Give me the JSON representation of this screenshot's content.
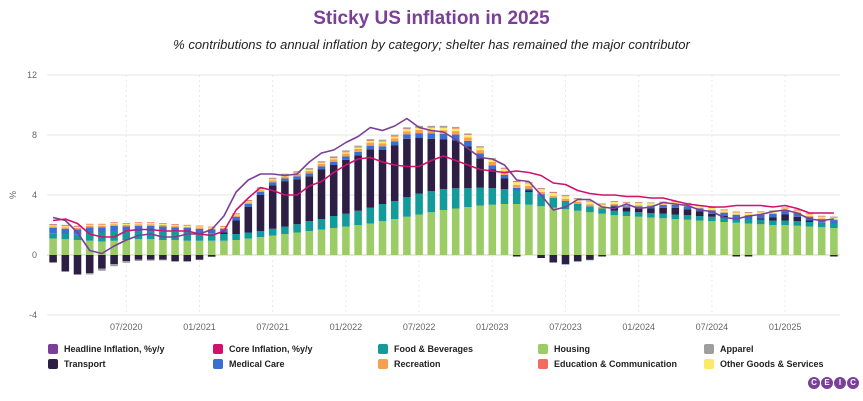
{
  "chart_data": {
    "type": "bar",
    "title": "Sticky US inflation in 2025",
    "subtitle": "% contributions to annual inflation by category; shelter has remained the major contributor",
    "ylabel": "%",
    "ylim": [
      -4,
      12
    ],
    "yticks": [
      "12",
      "8",
      "4",
      "0",
      "-4"
    ],
    "xticklabels": [
      "07/2020",
      "01/2021",
      "07/2021",
      "01/2022",
      "07/2022",
      "01/2023",
      "07/2023",
      "01/2024",
      "07/2024",
      "01/2025"
    ],
    "months": [
      "01/2020",
      "02/2020",
      "03/2020",
      "04/2020",
      "05/2020",
      "06/2020",
      "07/2020",
      "08/2020",
      "09/2020",
      "10/2020",
      "11/2020",
      "12/2020",
      "01/2021",
      "02/2021",
      "03/2021",
      "04/2021",
      "05/2021",
      "06/2021",
      "07/2021",
      "08/2021",
      "09/2021",
      "10/2021",
      "11/2021",
      "12/2021",
      "01/2022",
      "02/2022",
      "03/2022",
      "04/2022",
      "05/2022",
      "06/2022",
      "07/2022",
      "08/2022",
      "09/2022",
      "10/2022",
      "11/2022",
      "12/2022",
      "01/2023",
      "02/2023",
      "03/2023",
      "04/2023",
      "05/2023",
      "06/2023",
      "07/2023",
      "08/2023",
      "09/2023",
      "10/2023",
      "11/2023",
      "12/2023",
      "01/2024",
      "02/2024",
      "03/2024",
      "04/2024",
      "05/2024",
      "06/2024",
      "07/2024",
      "08/2024",
      "09/2024",
      "10/2024",
      "11/2024",
      "12/2024",
      "01/2025",
      "02/2025",
      "03/2025",
      "04/2025",
      "05/2025"
    ],
    "series": [
      {
        "name": "Housing",
        "color": "#9ccc65",
        "values": [
          1.1,
          1.05,
          1.0,
          0.95,
          0.9,
          0.95,
          1.0,
          1.05,
          1.05,
          1.0,
          1.0,
          0.95,
          0.95,
          0.95,
          0.95,
          1.0,
          1.1,
          1.2,
          1.3,
          1.4,
          1.5,
          1.6,
          1.7,
          1.8,
          1.9,
          2.0,
          2.1,
          2.25,
          2.4,
          2.55,
          2.7,
          2.85,
          3.0,
          3.1,
          3.2,
          3.3,
          3.35,
          3.4,
          3.4,
          3.35,
          3.25,
          3.15,
          3.05,
          2.95,
          2.85,
          2.75,
          2.65,
          2.6,
          2.55,
          2.5,
          2.45,
          2.4,
          2.35,
          2.3,
          2.25,
          2.2,
          2.15,
          2.1,
          2.05,
          2.0,
          2.0,
          1.95,
          1.9,
          1.85,
          1.8
        ]
      },
      {
        "name": "Food & Beverages",
        "color": "#139b9b",
        "values": [
          0.35,
          0.35,
          0.35,
          0.55,
          0.6,
          0.65,
          0.55,
          0.55,
          0.55,
          0.55,
          0.55,
          0.55,
          0.5,
          0.5,
          0.45,
          0.4,
          0.4,
          0.4,
          0.45,
          0.5,
          0.55,
          0.65,
          0.7,
          0.8,
          0.85,
          0.95,
          1.05,
          1.15,
          1.2,
          1.3,
          1.4,
          1.4,
          1.4,
          1.35,
          1.25,
          1.2,
          1.1,
          1.0,
          0.9,
          0.85,
          0.75,
          0.65,
          0.55,
          0.45,
          0.4,
          0.35,
          0.3,
          0.3,
          0.3,
          0.3,
          0.3,
          0.3,
          0.3,
          0.3,
          0.3,
          0.3,
          0.3,
          0.3,
          0.3,
          0.3,
          0.3,
          0.3,
          0.3,
          0.3,
          0.3
        ]
      },
      {
        "name": "Transport",
        "color": "#2d1f44",
        "values": [
          -0.5,
          -1.1,
          -1.3,
          -1.2,
          -0.9,
          -0.6,
          -0.4,
          -0.3,
          -0.3,
          -0.3,
          -0.4,
          -0.4,
          -0.3,
          -0.1,
          0.1,
          0.9,
          1.7,
          2.4,
          2.9,
          3.0,
          3.0,
          3.0,
          3.3,
          3.4,
          3.6,
          3.7,
          3.9,
          3.6,
          3.7,
          3.9,
          3.7,
          3.5,
          3.3,
          3.2,
          2.8,
          1.95,
          1.25,
          0.7,
          -0.1,
          0.1,
          -0.2,
          -0.5,
          -0.6,
          -0.4,
          -0.3,
          -0.1,
          0.3,
          0.25,
          0.25,
          0.3,
          0.4,
          0.45,
          0.4,
          0.3,
          0.2,
          0.1,
          -0.1,
          -0.1,
          0.1,
          0.2,
          0.4,
          0.3,
          0.1,
          0.0,
          -0.1
        ]
      },
      {
        "name": "Medical Care",
        "color": "#3a6fd1",
        "values": [
          0.35,
          0.35,
          0.35,
          0.35,
          0.35,
          0.35,
          0.35,
          0.35,
          0.35,
          0.35,
          0.3,
          0.3,
          0.3,
          0.25,
          0.25,
          0.25,
          0.2,
          0.2,
          0.2,
          0.2,
          0.2,
          0.2,
          0.2,
          0.2,
          0.22,
          0.22,
          0.24,
          0.25,
          0.27,
          0.3,
          0.32,
          0.35,
          0.38,
          0.38,
          0.36,
          0.32,
          0.28,
          0.24,
          0.18,
          0.12,
          0.06,
          0.0,
          -0.02,
          -0.04,
          -0.05,
          0.0,
          0.05,
          0.1,
          0.14,
          0.16,
          0.18,
          0.2,
          0.2,
          0.21,
          0.22,
          0.22,
          0.23,
          0.24,
          0.24,
          0.25,
          0.25,
          0.25,
          0.25,
          0.24,
          0.23
        ]
      },
      {
        "name": "Recreation",
        "color": "#f6a04d",
        "values": [
          0.1,
          0.1,
          0.1,
          0.1,
          0.1,
          0.1,
          0.1,
          0.1,
          0.1,
          0.1,
          0.08,
          0.08,
          0.08,
          0.06,
          0.06,
          0.08,
          0.1,
          0.12,
          0.12,
          0.14,
          0.15,
          0.16,
          0.17,
          0.18,
          0.19,
          0.2,
          0.2,
          0.2,
          0.2,
          0.2,
          0.22,
          0.23,
          0.24,
          0.23,
          0.22,
          0.22,
          0.22,
          0.22,
          0.2,
          0.18,
          0.15,
          0.15,
          0.15,
          0.15,
          0.14,
          0.12,
          0.1,
          0.09,
          0.08,
          0.06,
          0.05,
          0.05,
          0.05,
          0.04,
          0.04,
          0.04,
          0.04,
          0.04,
          0.04,
          0.04,
          0.04,
          0.05,
          0.05,
          0.05,
          0.05
        ]
      },
      {
        "name": "Other Goods & Services",
        "color": "#fbe96a",
        "values": [
          0.08,
          0.08,
          0.08,
          0.08,
          0.08,
          0.08,
          0.08,
          0.08,
          0.08,
          0.08,
          0.08,
          0.08,
          0.08,
          0.08,
          0.08,
          0.08,
          0.08,
          0.08,
          0.08,
          0.08,
          0.08,
          0.08,
          0.08,
          0.08,
          0.09,
          0.1,
          0.11,
          0.12,
          0.13,
          0.14,
          0.15,
          0.16,
          0.17,
          0.17,
          0.17,
          0.18,
          0.18,
          0.18,
          0.18,
          0.18,
          0.18,
          0.18,
          0.17,
          0.17,
          0.16,
          0.15,
          0.14,
          0.14,
          0.14,
          0.13,
          0.12,
          0.12,
          0.12,
          0.12,
          0.12,
          0.12,
          0.12,
          0.12,
          0.12,
          0.12,
          0.12,
          0.12,
          0.12,
          0.12,
          0.12
        ]
      },
      {
        "name": "Education & Communication",
        "color": "#f26b5b",
        "values": [
          0.05,
          0.05,
          0.05,
          0.05,
          0.05,
          0.05,
          0.05,
          0.05,
          0.05,
          0.05,
          0.05,
          0.05,
          0.05,
          0.05,
          0.05,
          0.05,
          0.05,
          0.05,
          0.04,
          0.04,
          0.04,
          0.04,
          0.04,
          0.04,
          0.04,
          0.04,
          0.04,
          0.04,
          0.04,
          0.04,
          0.04,
          0.04,
          0.04,
          0.04,
          0.04,
          0.04,
          0.04,
          0.04,
          0.04,
          0.04,
          0.04,
          0.04,
          0.04,
          0.04,
          0.04,
          0.04,
          0.04,
          0.04,
          0.04,
          0.04,
          0.04,
          0.04,
          0.04,
          0.04,
          0.04,
          0.04,
          0.04,
          0.04,
          0.04,
          0.04,
          0.04,
          0.04,
          0.04,
          0.04,
          0.04
        ]
      },
      {
        "name": "Apparel",
        "color": "#9e9e9e",
        "values": [
          0.04,
          0.03,
          0.02,
          -0.1,
          -0.15,
          -0.15,
          -0.12,
          -0.1,
          -0.08,
          -0.06,
          -0.06,
          -0.06,
          -0.04,
          -0.03,
          0.0,
          0.02,
          0.04,
          0.06,
          0.06,
          0.06,
          0.06,
          0.06,
          0.06,
          0.07,
          0.08,
          0.08,
          0.08,
          0.08,
          0.08,
          0.08,
          0.08,
          0.08,
          0.08,
          0.07,
          0.06,
          0.05,
          0.04,
          0.04,
          0.04,
          0.04,
          0.04,
          0.04,
          0.04,
          0.04,
          0.04,
          0.03,
          0.02,
          0.02,
          0.02,
          0.02,
          0.02,
          0.02,
          0.02,
          0.02,
          0.02,
          0.02,
          0.02,
          0.02,
          0.02,
          0.02,
          0.02,
          0.02,
          0.02,
          0.02,
          0.02
        ]
      }
    ],
    "lines": [
      {
        "name": "Headline Inflation, %y/y",
        "color": "#7b3f98",
        "values": [
          2.5,
          2.3,
          1.5,
          0.3,
          0.1,
          0.6,
          1.0,
          1.3,
          1.4,
          1.2,
          1.2,
          1.4,
          1.4,
          1.7,
          2.6,
          4.2,
          5.0,
          5.4,
          5.4,
          5.3,
          5.4,
          6.2,
          6.8,
          7.0,
          7.5,
          7.9,
          8.5,
          8.3,
          8.6,
          9.1,
          8.5,
          8.3,
          8.2,
          7.7,
          7.1,
          6.5,
          6.4,
          6.0,
          5.0,
          4.9,
          4.0,
          3.0,
          3.2,
          3.7,
          3.7,
          3.2,
          3.1,
          3.4,
          3.1,
          3.2,
          3.5,
          3.4,
          3.3,
          3.0,
          2.9,
          2.5,
          2.4,
          2.6,
          2.7,
          2.9,
          3.0,
          2.8,
          2.4,
          2.3,
          2.4
        ]
      },
      {
        "name": "Core Inflation, %y/y",
        "color": "#d0116e",
        "values": [
          2.3,
          2.4,
          2.1,
          1.4,
          1.2,
          1.2,
          1.6,
          1.7,
          1.7,
          1.6,
          1.6,
          1.6,
          1.4,
          1.3,
          1.6,
          3.0,
          3.8,
          4.5,
          4.3,
          4.0,
          4.0,
          4.6,
          4.9,
          5.5,
          6.0,
          6.4,
          6.5,
          6.2,
          6.0,
          5.9,
          5.9,
          6.3,
          6.6,
          6.3,
          6.0,
          5.7,
          5.6,
          5.5,
          5.6,
          5.5,
          5.3,
          4.8,
          4.7,
          4.3,
          4.1,
          4.0,
          4.0,
          3.9,
          3.9,
          3.8,
          3.8,
          3.6,
          3.4,
          3.3,
          3.2,
          3.2,
          3.3,
          3.3,
          3.3,
          3.2,
          3.3,
          3.1,
          2.8,
          2.8,
          2.8
        ]
      }
    ]
  },
  "legend": [
    {
      "label": "Headline Inflation, %y/y",
      "color": "#7b3f98"
    },
    {
      "label": "Core Inflation, %y/y",
      "color": "#d0116e"
    },
    {
      "label": "Food & Beverages",
      "color": "#139b9b"
    },
    {
      "label": "Housing",
      "color": "#9ccc65"
    },
    {
      "label": "Apparel",
      "color": "#9e9e9e"
    },
    {
      "label": "Transport",
      "color": "#2d1f44"
    },
    {
      "label": "Medical Care",
      "color": "#3a6fd1"
    },
    {
      "label": "Recreation",
      "color": "#f6a04d"
    },
    {
      "label": "Education & Communication",
      "color": "#f26b5b"
    },
    {
      "label": "Other Goods & Services",
      "color": "#fbe96a"
    }
  ],
  "logo": {
    "letters": [
      "C",
      "E",
      "I",
      "C"
    ],
    "color": "#7b3f98"
  }
}
